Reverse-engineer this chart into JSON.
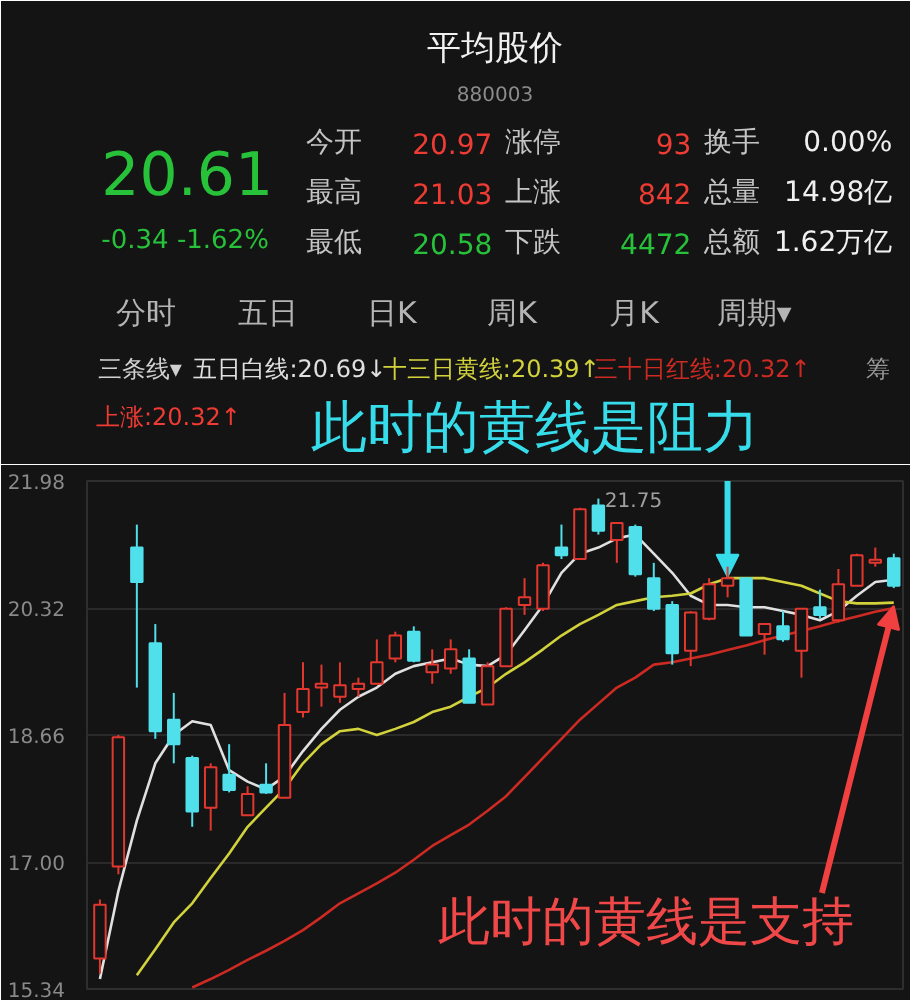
{
  "chart_data": {
    "type": "candlestick",
    "title": "平均股价",
    "subtitle": "880003",
    "categories": [
      null,
      null,
      null,
      null,
      null,
      null,
      null,
      null,
      null,
      null,
      null,
      null,
      null,
      null,
      null,
      null,
      null,
      null,
      null,
      null,
      null,
      null,
      null,
      null,
      null,
      null,
      null,
      null,
      null,
      null,
      null,
      null,
      null,
      null,
      null,
      null,
      null,
      null,
      null,
      null,
      null,
      null,
      null,
      null
    ],
    "ohlc": [
      [
        15.74,
        16.51,
        15.54,
        16.44
      ],
      [
        16.94,
        18.66,
        16.84,
        18.63
      ],
      [
        21.11,
        21.41,
        19.28,
        20.66
      ],
      [
        19.86,
        20.11,
        18.61,
        18.71
      ],
      [
        18.86,
        19.21,
        18.29,
        18.54
      ],
      [
        18.36,
        18.39,
        17.46,
        17.66
      ],
      [
        17.71,
        18.29,
        17.41,
        18.24
      ],
      [
        18.14,
        18.54,
        17.91,
        17.94
      ],
      [
        17.61,
        17.99,
        17.61,
        17.89
      ],
      [
        18.01,
        18.29,
        17.89,
        17.91
      ],
      [
        17.84,
        19.21,
        17.84,
        18.79
      ],
      [
        18.96,
        19.61,
        18.89,
        19.26
      ],
      [
        19.28,
        19.58,
        19.03,
        19.33
      ],
      [
        19.16,
        19.61,
        19.08,
        19.31
      ],
      [
        19.26,
        19.41,
        19.16,
        19.33
      ],
      [
        19.33,
        19.91,
        19.33,
        19.61
      ],
      [
        19.66,
        20.01,
        19.61,
        19.96
      ],
      [
        20.01,
        20.08,
        19.61,
        19.63
      ],
      [
        19.48,
        19.78,
        19.33,
        19.58
      ],
      [
        19.53,
        19.91,
        19.46,
        19.78
      ],
      [
        19.66,
        19.78,
        19.08,
        19.08
      ],
      [
        19.06,
        19.61,
        19.06,
        19.56
      ],
      [
        19.56,
        20.33,
        19.56,
        20.31
      ],
      [
        20.36,
        20.71,
        20.23,
        20.46
      ],
      [
        20.31,
        20.91,
        20.28,
        20.88
      ],
      [
        21.11,
        21.41,
        20.96,
        21.01
      ],
      [
        20.96,
        21.63,
        20.96,
        21.61
      ],
      [
        21.66,
        21.75,
        21.28,
        21.33
      ],
      [
        21.21,
        21.43,
        20.91,
        21.43
      ],
      [
        21.38,
        21.41,
        20.73,
        20.76
      ],
      [
        20.71,
        20.91,
        20.28,
        20.31
      ],
      [
        20.36,
        20.41,
        19.58,
        19.73
      ],
      [
        19.76,
        20.28,
        19.56,
        20.26
      ],
      [
        20.18,
        20.71,
        20.16,
        20.63
      ],
      [
        20.61,
        20.86,
        20.46,
        20.71
      ],
      [
        20.71,
        20.71,
        19.96,
        19.96
      ],
      [
        19.98,
        20.11,
        19.71,
        20.11
      ],
      [
        20.08,
        20.28,
        19.88,
        19.91
      ],
      [
        19.76,
        20.31,
        19.41,
        20.31
      ],
      [
        20.33,
        20.56,
        20.18,
        20.23
      ],
      [
        20.16,
        20.83,
        20.13,
        20.63
      ],
      [
        20.61,
        21.03,
        20.61,
        21.01
      ],
      [
        20.91,
        21.11,
        20.86,
        20.95
      ],
      [
        20.97,
        21.03,
        20.58,
        20.61
      ]
    ],
    "colors": [
      "#e2372f",
      "#e2372f",
      "#50e0ec",
      "#50e0ec",
      "#50e0ec",
      "#50e0ec",
      "#e2372f",
      "#50e0ec",
      "#e2372f",
      "#50e0ec",
      "#e2372f",
      "#e2372f",
      "#e2372f",
      "#e2372f",
      "#e2372f",
      "#e2372f",
      "#e2372f",
      "#50e0ec",
      "#e2372f",
      "#e2372f",
      "#50e0ec",
      "#e2372f",
      "#e2372f",
      "#e2372f",
      "#e2372f",
      "#50e0ec",
      "#e2372f",
      "#50e0ec",
      "#e2372f",
      "#50e0ec",
      "#50e0ec",
      "#50e0ec",
      "#e2372f",
      "#e2372f",
      "#e2372f",
      "#50e0ec",
      "#e2372f",
      "#50e0ec",
      "#e2372f",
      "#50e0ec",
      "#e2372f",
      "#e2372f",
      "#e2372f",
      "#50e0ec"
    ],
    "value_labels": [
      null,
      null,
      null,
      null,
      null,
      null,
      null,
      null,
      null,
      null,
      null,
      null,
      null,
      null,
      null,
      null,
      null,
      null,
      null,
      null,
      null,
      null,
      null,
      null,
      null,
      null,
      null,
      "21.75",
      null,
      null,
      null,
      null,
      null,
      null,
      null,
      null,
      null,
      null,
      null,
      null,
      null,
      null,
      null,
      null
    ],
    "series": [
      {
        "type": "line",
        "name": "五日白线:20.69↓",
        "color": "#e0e0e0",
        "values": [
          15.47,
          16.62,
          17.54,
          18.29,
          18.66,
          18.84,
          18.79,
          18.2,
          18.05,
          17.95,
          18.12,
          18.45,
          18.74,
          18.99,
          19.16,
          19.28,
          19.46,
          19.56,
          19.61,
          19.66,
          19.58,
          19.56,
          19.71,
          20.03,
          20.36,
          20.78,
          21.03,
          21.11,
          21.23,
          21.28,
          21.03,
          20.78,
          20.48,
          20.36,
          20.36,
          20.33,
          20.33,
          20.28,
          20.23,
          20.16,
          20.28,
          20.48,
          20.66,
          20.69
        ]
      },
      {
        "type": "line",
        "name": "十三日黄线:20.39↑",
        "color": "#d2d23c",
        "values": [
          null,
          null,
          15.52,
          15.86,
          16.21,
          16.46,
          16.79,
          17.11,
          17.46,
          17.71,
          17.96,
          18.29,
          18.54,
          18.71,
          18.74,
          18.66,
          18.74,
          18.83,
          18.96,
          19.03,
          19.16,
          19.28,
          19.46,
          19.61,
          19.78,
          19.96,
          20.11,
          20.23,
          20.36,
          20.41,
          20.46,
          20.48,
          20.51,
          20.63,
          20.71,
          20.71,
          20.71,
          20.66,
          20.61,
          20.51,
          20.41,
          20.38,
          20.38,
          20.39
        ]
      },
      {
        "type": "line",
        "name": "三十日红线:20.32↑",
        "color": "#cc2a22",
        "values": [
          null,
          null,
          null,
          null,
          null,
          15.36,
          15.47,
          15.59,
          15.72,
          15.84,
          15.97,
          16.11,
          16.28,
          16.46,
          16.59,
          16.72,
          16.86,
          17.03,
          17.21,
          17.35,
          17.49,
          17.67,
          17.86,
          18.11,
          18.36,
          18.61,
          18.86,
          19.07,
          19.28,
          19.41,
          19.58,
          19.61,
          19.66,
          19.71,
          19.77,
          19.83,
          19.9,
          19.96,
          20.02,
          20.08,
          20.15,
          20.21,
          20.27,
          20.32
        ]
      }
    ],
    "ylim": [
      15.34,
      21.98
    ],
    "yticks": [
      15.34,
      {
        "value": 17,
        "label": "17.00"
      },
      18.66,
      20.32,
      21.98
    ],
    "grid": "y",
    "legend": "top",
    "tick_labels": "y",
    "line_style": "solid",
    "annotations": [
      "20.61",
      "-0.34 -1.62%",
      "今开",
      "20.97",
      "涨停",
      "93",
      "换手",
      "0.00%",
      "最高",
      "21.03",
      "上涨",
      "842",
      "总量",
      "14.98亿",
      "最低",
      "20.58",
      "下跌",
      "4472",
      "总额",
      "1.62万亿",
      "分时",
      "五日",
      "日K",
      "周K",
      "月K",
      "周期▾",
      "三条线▾",
      "上涨:20.32↑",
      "筹",
      {
        "text": "此时的黄线是阻力",
        "y": 20.73
      },
      "此时的黄线是支持"
    ]
  }
}
